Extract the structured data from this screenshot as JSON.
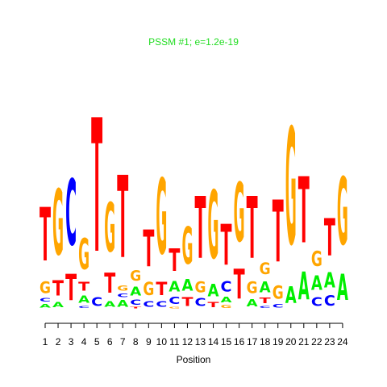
{
  "chart_data": {
    "type": "logo",
    "title": "PSSM #1; e=1.2e-19",
    "x_label": "Position",
    "title_color": "#22dd22",
    "colors": {
      "A": "#00ee00",
      "C": "#0000ff",
      "G": "#ffa500",
      "T": "#ff0000"
    },
    "categories": [
      "1",
      "2",
      "3",
      "4",
      "5",
      "6",
      "7",
      "8",
      "9",
      "10",
      "11",
      "12",
      "13",
      "14",
      "15",
      "16",
      "17",
      "18",
      "19",
      "20",
      "21",
      "22",
      "23",
      "24"
    ],
    "ylim": [
      0,
      2
    ],
    "stacks": [
      {
        "letters": [
          "A",
          "C",
          "G",
          "T"
        ],
        "heights": [
          0.05,
          0.05,
          0.16,
          0.73
        ]
      },
      {
        "letters": [
          "A",
          "T",
          "G"
        ],
        "heights": [
          0.07,
          0.21,
          0.89
        ]
      },
      {
        "letters": [
          "T",
          "C"
        ],
        "heights": [
          0.36,
          0.9
        ]
      },
      {
        "letters": [
          "C",
          "A",
          "T",
          "G"
        ],
        "heights": [
          0.03,
          0.1,
          0.12,
          0.42
        ]
      },
      {
        "letters": [
          "C",
          "T"
        ],
        "heights": [
          0.12,
          1.82
        ]
      },
      {
        "letters": [
          "A",
          "T",
          "G"
        ],
        "heights": [
          0.08,
          0.27,
          0.67
        ]
      },
      {
        "letters": [
          "A",
          "C",
          "G",
          "T"
        ],
        "heights": [
          0.09,
          0.05,
          0.07,
          1.12
        ]
      },
      {
        "letters": [
          "T",
          "C",
          "A",
          "G"
        ],
        "heights": [
          0.02,
          0.07,
          0.12,
          0.14
        ]
      },
      {
        "letters": [
          "C",
          "G",
          "T"
        ],
        "heights": [
          0.08,
          0.18,
          0.5
        ]
      },
      {
        "letters": [
          "C",
          "T",
          "G"
        ],
        "heights": [
          0.08,
          0.18,
          1.03
        ]
      },
      {
        "letters": [
          "G",
          "C",
          "A",
          "T"
        ],
        "heights": [
          0.02,
          0.1,
          0.14,
          0.31
        ]
      },
      {
        "letters": [
          "T",
          "A",
          "G"
        ],
        "heights": [
          0.12,
          0.16,
          0.51
        ]
      },
      {
        "letters": [
          "C",
          "G",
          "T"
        ],
        "heights": [
          0.11,
          0.15,
          0.84
        ]
      },
      {
        "letters": [
          "T",
          "A",
          "G"
        ],
        "heights": [
          0.07,
          0.17,
          0.93
        ]
      },
      {
        "letters": [
          "G",
          "A",
          "C",
          "T"
        ],
        "heights": [
          0.04,
          0.08,
          0.14,
          0.56
        ]
      },
      {
        "letters": [
          "T",
          "G"
        ],
        "heights": [
          0.41,
          0.81
        ]
      },
      {
        "letters": [
          "A",
          "G",
          "T"
        ],
        "heights": [
          0.1,
          0.16,
          0.84
        ]
      },
      {
        "letters": [
          "C",
          "T",
          "A",
          "G"
        ],
        "heights": [
          0.03,
          0.08,
          0.15,
          0.16
        ]
      },
      {
        "letters": [
          "C",
          "G",
          "T"
        ],
        "heights": [
          0.05,
          0.18,
          0.84
        ]
      },
      {
        "letters": [
          "A",
          "G"
        ],
        "heights": [
          0.23,
          1.59
        ]
      },
      {
        "letters": [
          "A",
          "T"
        ],
        "heights": [
          0.38,
          0.9
        ]
      },
      {
        "letters": [
          "C",
          "A",
          "G"
        ],
        "heights": [
          0.12,
          0.2,
          0.21
        ]
      },
      {
        "letters": [
          "C",
          "A",
          "T"
        ],
        "heights": [
          0.14,
          0.21,
          0.51
        ]
      },
      {
        "letters": [
          "A",
          "G"
        ],
        "heights": [
          0.36,
          0.92
        ]
      }
    ]
  }
}
